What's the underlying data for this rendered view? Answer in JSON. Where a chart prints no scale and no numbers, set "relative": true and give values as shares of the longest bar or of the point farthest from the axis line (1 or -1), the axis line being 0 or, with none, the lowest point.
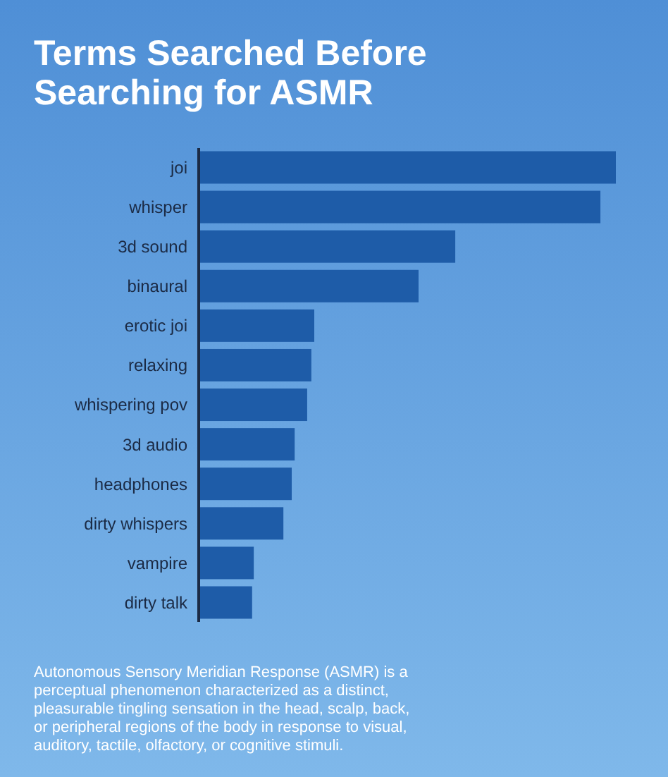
{
  "chart_data": {
    "type": "bar",
    "orientation": "horizontal",
    "relative": true,
    "title": "Terms Searched Before Searching for ASMR",
    "categories": [
      "joi",
      "whisper",
      "3d sound",
      "binaural",
      "erotic joi",
      "relaxing",
      "whispering pov",
      "3d audio",
      "headphones",
      "dirty whispers",
      "vampire",
      "dirty talk"
    ],
    "values": [
      1,
      0.963,
      0.615,
      0.527,
      0.277,
      0.27,
      0.26,
      0.23,
      0.223,
      0.203,
      0.132,
      0.128
    ],
    "color": "#1e5ca8",
    "annotations": [
      "Autonomous Sensory Meridian Response (ASMR) is a perceptual phenomenon characterized as a distinct, pleasurable tingling sensation in the head, scalp, back, or peripheral regions of the body in response to visual, auditory, tactile, olfactory, or cognitive stimuli."
    ]
  }
}
